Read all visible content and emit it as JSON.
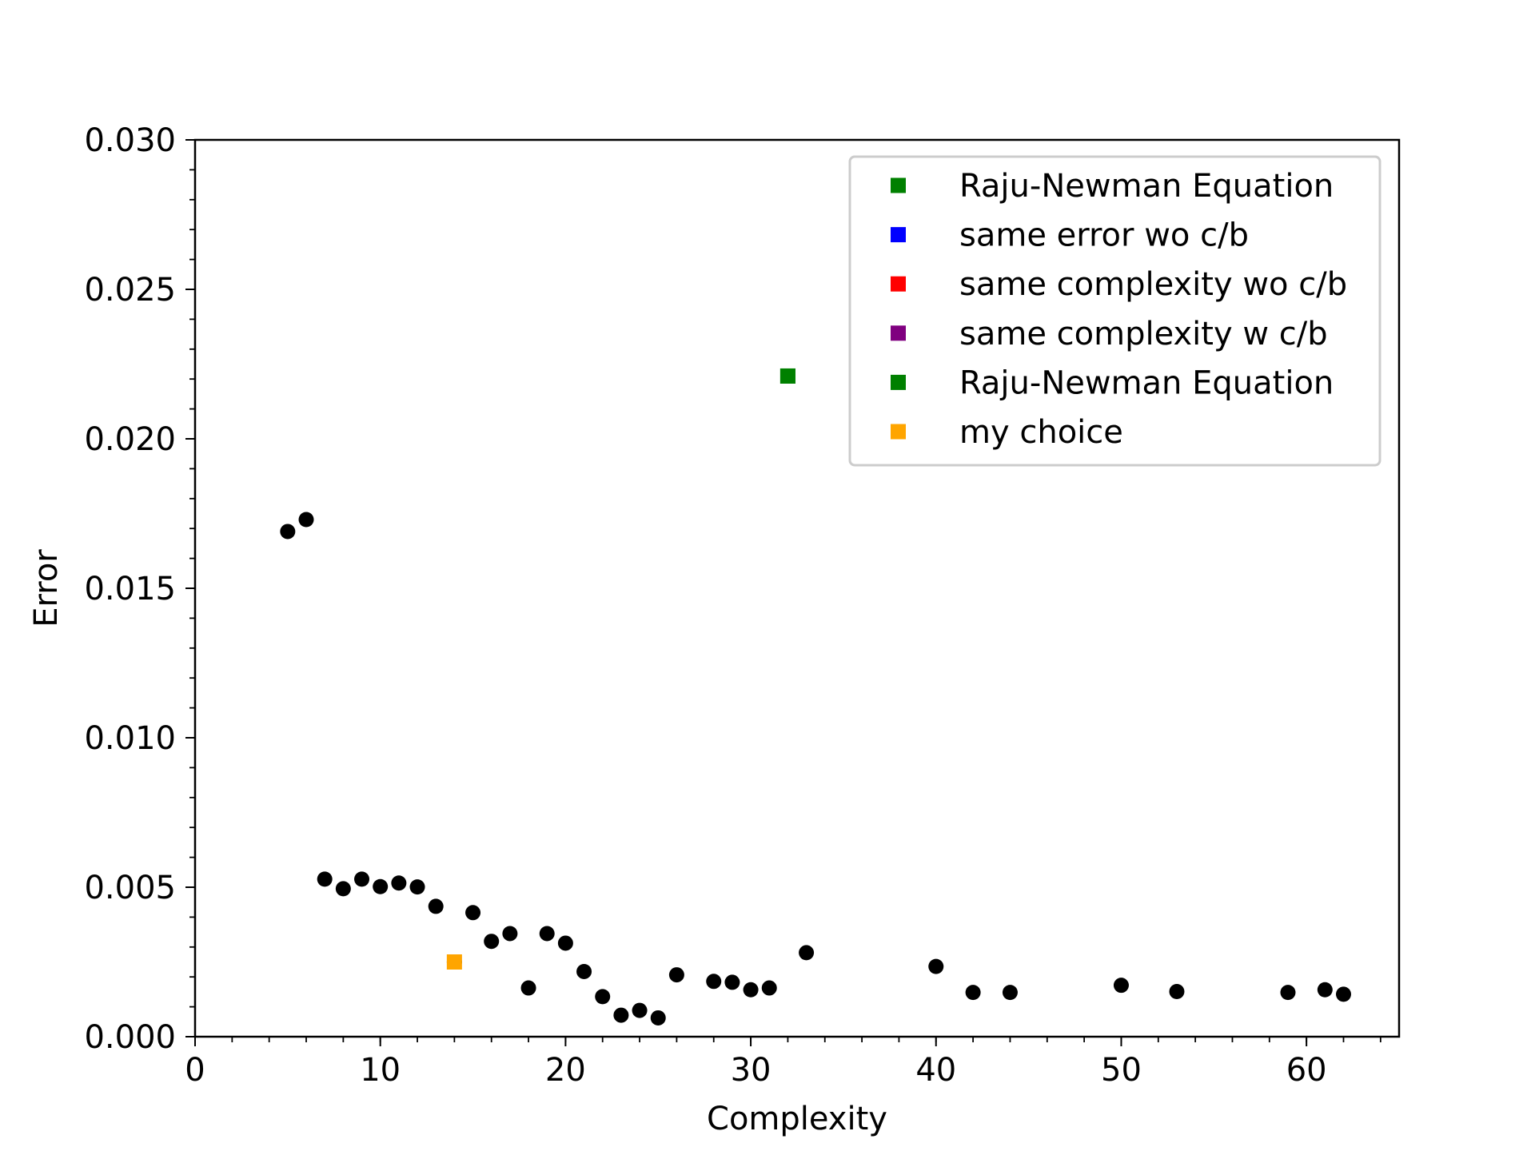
{
  "chart_data": {
    "type": "scatter",
    "title": "",
    "xlabel": "Complexity",
    "ylabel": "Error",
    "xlim": [
      0,
      65
    ],
    "ylim": [
      0,
      0.03
    ],
    "x_ticks": [
      {
        "value": 0,
        "label": "0"
      },
      {
        "value": 10,
        "label": "10"
      },
      {
        "value": 20,
        "label": "20"
      },
      {
        "value": 30,
        "label": "30"
      },
      {
        "value": 40,
        "label": "40"
      },
      {
        "value": 50,
        "label": "50"
      },
      {
        "value": 60,
        "label": "60"
      }
    ],
    "y_ticks": [
      {
        "value": 0,
        "label": "0.000"
      },
      {
        "value": 0.005,
        "label": "0.005"
      },
      {
        "value": 0.01,
        "label": "0.010"
      },
      {
        "value": 0.015,
        "label": "0.015"
      },
      {
        "value": 0.02,
        "label": "0.020"
      },
      {
        "value": 0.025,
        "label": "0.025"
      },
      {
        "value": 0.03,
        "label": "0.030"
      }
    ],
    "grid": false,
    "legend_position": "top-right",
    "series": [
      {
        "color": "#000000",
        "marker": "circle",
        "points": [
          {
            "x": 5,
            "y": 0.0169
          },
          {
            "x": 6,
            "y": 0.0173
          },
          {
            "x": 7,
            "y": 0.00527
          },
          {
            "x": 8,
            "y": 0.00495
          },
          {
            "x": 9,
            "y": 0.00527
          },
          {
            "x": 10,
            "y": 0.00502
          },
          {
            "x": 11,
            "y": 0.00514
          },
          {
            "x": 12,
            "y": 0.00501
          },
          {
            "x": 13,
            "y": 0.00436
          },
          {
            "x": 14,
            "y": 0.0025
          },
          {
            "x": 15,
            "y": 0.00415
          },
          {
            "x": 16,
            "y": 0.00319
          },
          {
            "x": 17,
            "y": 0.00345
          },
          {
            "x": 18,
            "y": 0.00163
          },
          {
            "x": 19,
            "y": 0.00345
          },
          {
            "x": 20,
            "y": 0.00313
          },
          {
            "x": 21,
            "y": 0.00218
          },
          {
            "x": 22,
            "y": 0.00134
          },
          {
            "x": 23,
            "y": 0.00072
          },
          {
            "x": 24,
            "y": 0.00088
          },
          {
            "x": 25,
            "y": 0.00063
          },
          {
            "x": 26,
            "y": 0.00207
          },
          {
            "x": 28,
            "y": 0.00185
          },
          {
            "x": 29,
            "y": 0.00182
          },
          {
            "x": 30,
            "y": 0.00157
          },
          {
            "x": 31,
            "y": 0.00163
          },
          {
            "x": 33,
            "y": 0.00281
          },
          {
            "x": 40,
            "y": 0.00235
          },
          {
            "x": 42,
            "y": 0.00148
          },
          {
            "x": 44,
            "y": 0.00148
          },
          {
            "x": 50,
            "y": 0.00172
          },
          {
            "x": 53,
            "y": 0.00151
          },
          {
            "x": 59,
            "y": 0.00148
          },
          {
            "x": 61,
            "y": 0.00157
          },
          {
            "x": 62,
            "y": 0.00142
          }
        ]
      },
      {
        "name": "Raju-Newman Equation",
        "color": "#008000",
        "marker": "square",
        "points": [
          {
            "x": 32,
            "y": 0.0221
          }
        ]
      },
      {
        "name": "same error wo c/b",
        "color": "#0000ff",
        "marker": "square",
        "points": []
      },
      {
        "name": "same complexity wo c/b",
        "color": "#ff0000",
        "marker": "square",
        "points": []
      },
      {
        "name": "same complexity w c/b",
        "color": "#800080",
        "marker": "square",
        "points": []
      },
      {
        "name": "Raju-Newman Equation",
        "color": "#008000",
        "marker": "square",
        "points": [
          {
            "x": 32,
            "y": 0.0221
          }
        ]
      },
      {
        "name": "my choice",
        "color": "#ffa500",
        "marker": "square",
        "points": [
          {
            "x": 14,
            "y": 0.0025
          }
        ]
      }
    ]
  }
}
